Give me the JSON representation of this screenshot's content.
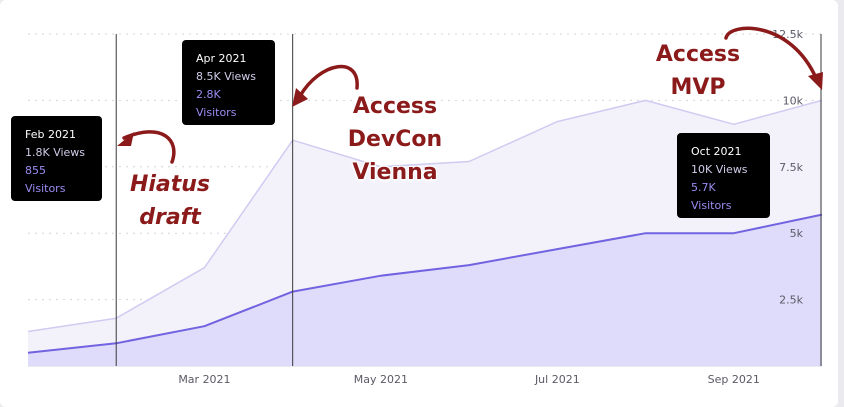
{
  "chart_data": {
    "type": "area",
    "x_ticks": [
      "Mar 2021",
      "May 2021",
      "Jul 2021",
      "Sep 2021"
    ],
    "y_ticks": [
      "2.5k",
      "5k",
      "7.5k",
      "10k",
      "12.5k"
    ],
    "ylim": [
      0,
      12500
    ],
    "grid": true,
    "x": [
      "2021-01",
      "2021-02",
      "2021-03",
      "2021-04",
      "2021-05",
      "2021-06",
      "2021-07",
      "2021-08",
      "2021-09",
      "2021-10"
    ],
    "series": [
      {
        "name": "Views",
        "values": [
          1300,
          1800,
          3700,
          8500,
          7500,
          7700,
          9200,
          10000,
          9100,
          10000
        ]
      },
      {
        "name": "Visitors",
        "values": [
          500,
          855,
          1500,
          2800,
          3400,
          3800,
          4400,
          5000,
          5000,
          5700
        ]
      }
    ],
    "markers": [
      "2021-02",
      "2021-04",
      "2021-10"
    ],
    "tooltips": [
      {
        "date": "Feb 2021",
        "views": "1.8K Views",
        "visitors": "855 Visitors"
      },
      {
        "date": "Apr 2021",
        "views": "8.5K Views",
        "visitors": "2.8K Visitors"
      },
      {
        "date": "Oct 2021",
        "views": "10K Views",
        "visitors": "5.7K Visitors"
      }
    ],
    "annotations": [
      {
        "lines": [
          "Hiatus",
          "draft"
        ]
      },
      {
        "lines": [
          "Access",
          "DevCon",
          "Vienna"
        ]
      },
      {
        "lines": [
          "Access",
          "MVP"
        ]
      }
    ],
    "colors": {
      "views_fill": "#f3f2fb",
      "views_line": "#cfcbf1",
      "visitors_fill": "#dedcfa",
      "visitors_line": "#7263e0",
      "grid": "#d4d4dc",
      "marker": "#3a3a3a",
      "annotation": "#8b1a1a"
    }
  }
}
